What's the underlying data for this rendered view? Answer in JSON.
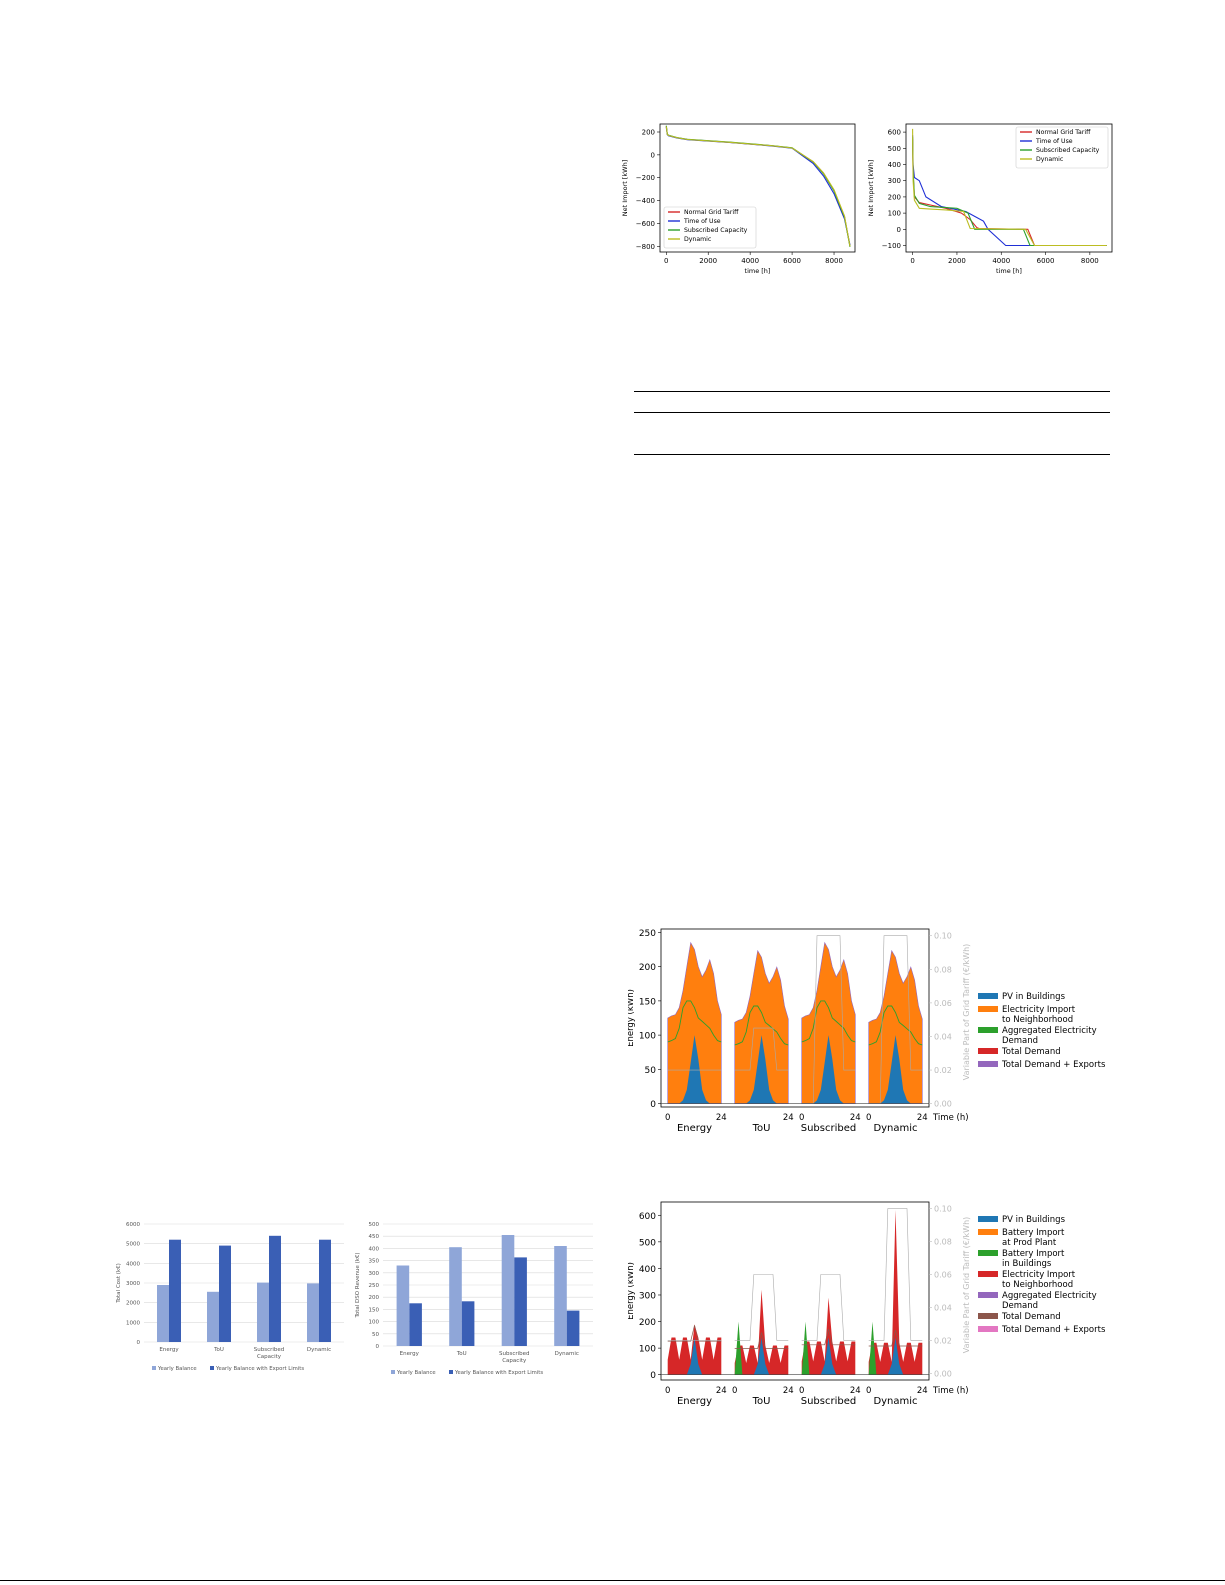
{
  "chart_data": [
    {
      "id": "duration_left",
      "type": "line",
      "xlabel": "time [h]",
      "ylabel": "Net Import [kWh]",
      "xlim": [
        -300,
        9000
      ],
      "ylim": [
        -850,
        270
      ],
      "xticks": [
        0,
        2000,
        4000,
        6000,
        8000
      ],
      "yticks": [
        200,
        0,
        -200,
        -400,
        -600,
        -800
      ],
      "ytick_labels": [
        "200",
        "0",
        "−200",
        "−400",
        "−600",
        "−800"
      ],
      "legend": "bottom-left",
      "series": [
        {
          "name": "Normal Grid Tariff",
          "color": "#d62728",
          "x": [
            0,
            50,
            100,
            500,
            1000,
            3000,
            5000,
            6000,
            7000,
            7500,
            8000,
            8500,
            8760
          ],
          "y": [
            250,
            180,
            170,
            150,
            135,
            110,
            80,
            60,
            -60,
            -160,
            -310,
            -540,
            -800
          ]
        },
        {
          "name": "Time of Use",
          "color": "#1f2fd6",
          "x": [
            0,
            50,
            100,
            500,
            1000,
            3000,
            5000,
            6000,
            7000,
            7500,
            8000,
            8500,
            8760
          ],
          "y": [
            240,
            178,
            168,
            148,
            133,
            108,
            78,
            58,
            -75,
            -185,
            -340,
            -560,
            -790
          ]
        },
        {
          "name": "Subscribed Capacity",
          "color": "#2ca02c",
          "x": [
            0,
            50,
            100,
            500,
            1000,
            3000,
            5000,
            6000,
            7000,
            7500,
            8000,
            8500,
            8760
          ],
          "y": [
            255,
            182,
            172,
            152,
            136,
            112,
            82,
            62,
            -62,
            -165,
            -315,
            -545,
            -805
          ]
        },
        {
          "name": "Dynamic",
          "color": "#bcbd22",
          "x": [
            0,
            50,
            100,
            500,
            1000,
            3000,
            5000,
            6000,
            7000,
            7500,
            8000,
            8500,
            8760
          ],
          "y": [
            248,
            180,
            170,
            150,
            134,
            110,
            80,
            60,
            -58,
            -158,
            -305,
            -535,
            -800
          ]
        }
      ]
    },
    {
      "id": "duration_right",
      "type": "line",
      "xlabel": "time [h]",
      "ylabel": "Net Import [kWh]",
      "xlim": [
        -300,
        9000
      ],
      "ylim": [
        -140,
        650
      ],
      "xticks": [
        0,
        2000,
        4000,
        6000,
        8000
      ],
      "yticks": [
        600,
        500,
        400,
        300,
        200,
        100,
        0,
        -100
      ],
      "ytick_labels": [
        "600",
        "500",
        "400",
        "300",
        "200",
        "100",
        "0",
        "−100"
      ],
      "legend": "top-right",
      "series": [
        {
          "name": "Normal Grid Tariff",
          "color": "#d62728",
          "x": [
            0,
            20,
            80,
            300,
            800,
            1500,
            2200,
            2600,
            2900,
            3000,
            5200,
            5500,
            8760
          ],
          "y": [
            560,
            350,
            200,
            165,
            150,
            130,
            100,
            60,
            10,
            5,
            0,
            -100,
            -100
          ]
        },
        {
          "name": "Time of Use",
          "color": "#1f2fd6",
          "x": [
            0,
            20,
            80,
            300,
            600,
            1300,
            2400,
            2800,
            3200,
            3400,
            4200,
            5000,
            8760
          ],
          "y": [
            580,
            400,
            320,
            300,
            200,
            140,
            110,
            80,
            50,
            0,
            -100,
            -100,
            -100
          ]
        },
        {
          "name": "Subscribed Capacity",
          "color": "#2ca02c",
          "x": [
            0,
            20,
            80,
            300,
            800,
            1400,
            2000,
            2500,
            2800,
            5000,
            5300,
            8760
          ],
          "y": [
            570,
            360,
            210,
            160,
            140,
            135,
            130,
            100,
            0,
            0,
            -100,
            -100
          ]
        },
        {
          "name": "Dynamic",
          "color": "#bcbd22",
          "x": [
            0,
            20,
            80,
            300,
            800,
            1500,
            2300,
            2600,
            5100,
            5500,
            8760
          ],
          "y": [
            620,
            300,
            180,
            130,
            125,
            120,
            110,
            5,
            0,
            -100,
            -100
          ]
        }
      ]
    },
    {
      "id": "bar_cost",
      "type": "bar",
      "ylabel": "Total Cost (k€)",
      "ylim": [
        0,
        6000
      ],
      "yticks": [
        0,
        1000,
        2000,
        3000,
        4000,
        5000,
        6000
      ],
      "categories": [
        "Energy",
        "ToU",
        "Subscribed\nCapacity",
        "Dynamic"
      ],
      "series": [
        {
          "name": "Yearly Balance",
          "color": "#8fa6d8",
          "values": [
            2900,
            2550,
            3020,
            2980
          ]
        },
        {
          "name": "Yearly Balance with Export Limits",
          "color": "#3a5fb5",
          "values": [
            5200,
            4900,
            5400,
            5200
          ]
        }
      ]
    },
    {
      "id": "bar_revenue",
      "type": "bar",
      "ylabel": "Total DSO Revenue (k€)",
      "ylim": [
        0,
        500
      ],
      "yticks": [
        0,
        50,
        100,
        150,
        200,
        250,
        300,
        350,
        400,
        450,
        500
      ],
      "categories": [
        "Energy",
        "ToU",
        "Subscribed\nCapacity",
        "Dynamic"
      ],
      "series": [
        {
          "name": "Yearly Balance",
          "color": "#8fa6d8",
          "values": [
            330,
            405,
            455,
            410
          ]
        },
        {
          "name": "Yearly Balance with Export Limits",
          "color": "#3a5fb5",
          "values": [
            175,
            183,
            363,
            145
          ]
        }
      ]
    },
    {
      "id": "daily_top",
      "type": "area",
      "ylabel": "Energy (kWh)",
      "y2label": "Variable Part of Grid Tariff (€/kWh)",
      "ylim": [
        -5,
        255
      ],
      "y2lim": [
        -0.002,
        0.104
      ],
      "yticks": [
        0,
        50,
        100,
        150,
        200,
        250
      ],
      "y2ticks": [
        "0.00",
        "0.02",
        "0.04",
        "0.06",
        "0.08",
        "0.10"
      ],
      "x_tick_labels": [
        "0",
        "24",
        "24",
        "0",
        "24",
        "0",
        "24"
      ],
      "time_label": "Time (h)",
      "groups": [
        "Energy",
        "ToU",
        "Subscribed",
        "Dynamic"
      ],
      "legend": "right",
      "series": [
        {
          "name": "PV in Buildings",
          "color": "#1f77b4"
        },
        {
          "name": "Electricity Import\nto Neighborhood",
          "color": "#ff7f0e"
        },
        {
          "name": "Aggregated Electricity\nDemand",
          "color": "#2ca02c"
        },
        {
          "name": "Total Demand",
          "color": "#d62728"
        },
        {
          "name": "Total Demand + Exports",
          "color": "#9467bd"
        }
      ],
      "demand_profile": [
        125,
        128,
        130,
        140,
        165,
        200,
        235,
        225,
        200,
        185,
        195,
        210,
        190,
        150,
        130
      ],
      "pv_profile": [
        0,
        0,
        0,
        0,
        5,
        20,
        60,
        100,
        65,
        20,
        5,
        0,
        0,
        0,
        0
      ],
      "aggregated_profile": [
        90,
        92,
        95,
        110,
        140,
        150,
        150,
        140,
        125,
        120,
        115,
        110,
        100,
        92,
        90
      ]
    },
    {
      "id": "daily_bottom",
      "type": "area",
      "ylabel": "Energy (kWh)",
      "y2label": "Variable Part of Grid Tariff (€/kWh)",
      "ylim": [
        -20,
        650
      ],
      "y2lim": [
        -0.004,
        0.104
      ],
      "yticks": [
        0,
        100,
        200,
        300,
        400,
        500,
        600
      ],
      "y2ticks": [
        "0.00",
        "0.02",
        "0.04",
        "0.06",
        "0.08",
        "0.10"
      ],
      "x_tick_labels": [
        "0",
        "24",
        "0",
        "24",
        "0",
        "24",
        "0",
        "24"
      ],
      "time_label": "Time (h)",
      "groups": [
        "Energy",
        "ToU",
        "Subscribed",
        "Dynamic"
      ],
      "legend": "right",
      "series": [
        {
          "name": "PV in Buildings",
          "color": "#1f77b4"
        },
        {
          "name": "Battery Import\nat Prod Plant",
          "color": "#ff7f0e"
        },
        {
          "name": "Battery Import\nin Buildings",
          "color": "#2ca02c"
        },
        {
          "name": "Electricity Import\nto Neighborhood",
          "color": "#d62728"
        },
        {
          "name": "Aggregated Electricity\nDemand",
          "color": "#9467bd"
        },
        {
          "name": "Total Demand",
          "color": "#8c564b"
        },
        {
          "name": "Total Demand + Exports",
          "color": "#e377c2"
        }
      ]
    }
  ],
  "colors": {
    "axis": "#000000",
    "grid": "#d9d9d9",
    "secondary_axis": "#bbbbbb",
    "footer_rule": "#000000"
  }
}
